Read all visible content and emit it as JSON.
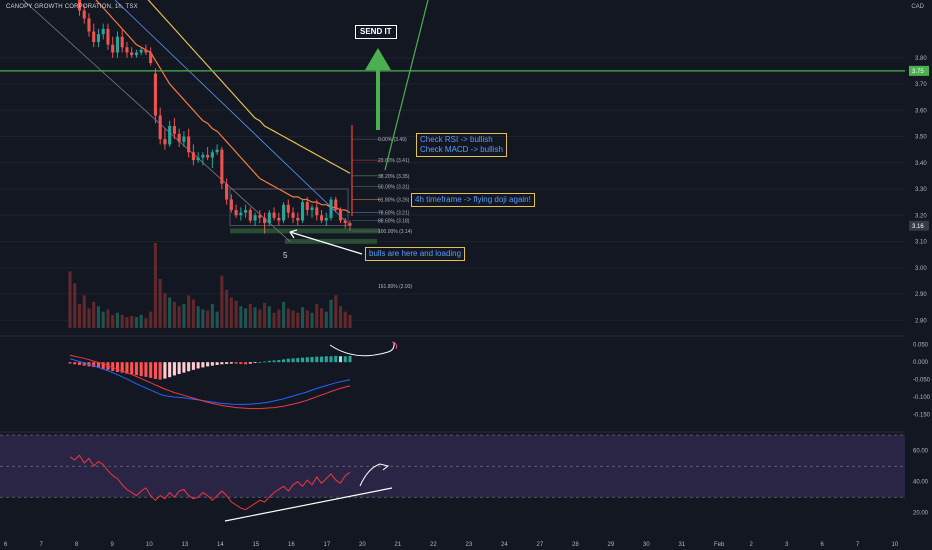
{
  "header": {
    "symbol_line": "CANOPY GROWTH CORPORATION, 1h, TSX",
    "currency": "CAD"
  },
  "annotations": {
    "send_it": "SEND IT",
    "rsi_macd_1": "Check RSI -> bullish",
    "rsi_macd_2": "Check MACD -> bullish",
    "flying_doji": "4h timeframe -> flying doji again!",
    "bulls": "bulls are here and loading",
    "wave_label": "5"
  },
  "fib_labels": [
    "0.00% (3.49)",
    "23.60% (3.41)",
    "38.20% (3.35)",
    "50.00% (3.31)",
    "61.80% (3.26)",
    "78.60% (3.21)",
    "88.60% (3.18)",
    "100.00% (3.14)",
    "161.80% (2.93)"
  ],
  "price_badges": {
    "resistance": "3.75",
    "last": "3.16"
  },
  "colors": {
    "up": "#26a69a",
    "down": "#ef5350",
    "bg": "#131722",
    "accent_green": "#4caf50",
    "annotation_border": "#e3c04f"
  },
  "chart_data": [
    {
      "type": "candlestick",
      "panel": "price",
      "ylim": [
        2.74,
        4.02
      ],
      "y_ticks": [
        "3.80",
        "3.70",
        "3.60",
        "3.50",
        "3.40",
        "3.30",
        "3.20",
        "3.10",
        "3.00",
        "2.90",
        "2.80"
      ],
      "x_ticks": [
        "6",
        "7",
        "8",
        "9",
        "10",
        "13",
        "14",
        "15",
        "16",
        "17",
        "20",
        "21",
        "22",
        "23",
        "24",
        "27",
        "28",
        "29",
        "30",
        "31",
        "Feb",
        "2",
        "3",
        "6",
        "7",
        "10"
      ],
      "candles_ohlc": [
        [
          4.08,
          4.12,
          4.03,
          4.06
        ],
        [
          4.06,
          4.1,
          4.02,
          4.04
        ],
        [
          4.04,
          4.06,
          3.96,
          3.98
        ],
        [
          3.98,
          4.0,
          3.93,
          3.95
        ],
        [
          3.95,
          3.97,
          3.88,
          3.9
        ],
        [
          3.9,
          3.93,
          3.84,
          3.86
        ],
        [
          3.86,
          3.91,
          3.84,
          3.89
        ],
        [
          3.89,
          3.93,
          3.87,
          3.91
        ],
        [
          3.91,
          3.93,
          3.83,
          3.85
        ],
        [
          3.85,
          3.88,
          3.8,
          3.82
        ],
        [
          3.82,
          3.9,
          3.8,
          3.88
        ],
        [
          3.88,
          3.91,
          3.82,
          3.84
        ],
        [
          3.84,
          3.86,
          3.8,
          3.82
        ],
        [
          3.82,
          3.84,
          3.8,
          3.81
        ],
        [
          3.81,
          3.83,
          3.8,
          3.82
        ],
        [
          3.82,
          3.84,
          3.81,
          3.83
        ],
        [
          3.83,
          3.85,
          3.81,
          3.82
        ],
        [
          3.82,
          3.84,
          3.77,
          3.78
        ],
        [
          3.74,
          3.76,
          3.55,
          3.58
        ],
        [
          3.58,
          3.61,
          3.47,
          3.49
        ],
        [
          3.49,
          3.53,
          3.45,
          3.47
        ],
        [
          3.47,
          3.56,
          3.46,
          3.54
        ],
        [
          3.54,
          3.57,
          3.49,
          3.51
        ],
        [
          3.51,
          3.53,
          3.46,
          3.48
        ],
        [
          3.48,
          3.52,
          3.46,
          3.5
        ],
        [
          3.5,
          3.53,
          3.42,
          3.44
        ],
        [
          3.44,
          3.47,
          3.39,
          3.41
        ],
        [
          3.41,
          3.44,
          3.4,
          3.42
        ],
        [
          3.42,
          3.44,
          3.39,
          3.43
        ],
        [
          3.43,
          3.46,
          3.41,
          3.42
        ],
        [
          3.42,
          3.45,
          3.38,
          3.44
        ],
        [
          3.44,
          3.47,
          3.43,
          3.45
        ],
        [
          3.45,
          3.46,
          3.3,
          3.32
        ],
        [
          3.32,
          3.34,
          3.24,
          3.26
        ],
        [
          3.26,
          3.28,
          3.21,
          3.22
        ],
        [
          3.22,
          3.24,
          3.19,
          3.2
        ],
        [
          3.2,
          3.23,
          3.18,
          3.21
        ],
        [
          3.21,
          3.24,
          3.19,
          3.22
        ],
        [
          3.22,
          3.23,
          3.17,
          3.18
        ],
        [
          3.18,
          3.21,
          3.16,
          3.2
        ],
        [
          3.2,
          3.22,
          3.17,
          3.19
        ],
        [
          3.19,
          3.21,
          3.13,
          3.17
        ],
        [
          3.17,
          3.22,
          3.16,
          3.21
        ],
        [
          3.21,
          3.23,
          3.18,
          3.19
        ],
        [
          3.19,
          3.21,
          3.16,
          3.18
        ],
        [
          3.18,
          3.25,
          3.17,
          3.24
        ],
        [
          3.24,
          3.26,
          3.19,
          3.21
        ],
        [
          3.21,
          3.23,
          3.17,
          3.19
        ],
        [
          3.19,
          3.21,
          3.16,
          3.18
        ],
        [
          3.18,
          3.26,
          3.17,
          3.25
        ],
        [
          3.25,
          3.27,
          3.2,
          3.22
        ],
        [
          3.22,
          3.24,
          3.19,
          3.23
        ],
        [
          3.23,
          3.26,
          3.18,
          3.2
        ],
        [
          3.2,
          3.22,
          3.17,
          3.18
        ],
        [
          3.18,
          3.21,
          3.16,
          3.19
        ],
        [
          3.19,
          3.27,
          3.18,
          3.26
        ],
        [
          3.26,
          3.27,
          3.21,
          3.22
        ],
        [
          3.22,
          3.23,
          3.17,
          3.18
        ],
        [
          3.18,
          3.19,
          3.15,
          3.17
        ],
        [
          3.17,
          3.18,
          3.14,
          3.16
        ]
      ],
      "volume": [
        52,
        41,
        22,
        30,
        18,
        24,
        20,
        15,
        17,
        12,
        14,
        12,
        10,
        11,
        10,
        12,
        9,
        15,
        78,
        45,
        32,
        28,
        24,
        20,
        22,
        30,
        26,
        20,
        17,
        16,
        22,
        15,
        48,
        35,
        28,
        25,
        20,
        18,
        22,
        19,
        17,
        23,
        20,
        14,
        17,
        24,
        18,
        16,
        14,
        19,
        16,
        14,
        22,
        18,
        15,
        26,
        30,
        20,
        15,
        12
      ],
      "ema_20": [
        4.14,
        4.12,
        4.1,
        4.08,
        4.06,
        4.03,
        4.01,
        3.99,
        3.97,
        3.95,
        3.93,
        3.91,
        3.89,
        3.87,
        3.85,
        3.84,
        3.83,
        3.82,
        3.79,
        3.76,
        3.73,
        3.7,
        3.68,
        3.66,
        3.64,
        3.62,
        3.6,
        3.58,
        3.56,
        3.55,
        3.53,
        3.52,
        3.5,
        3.48,
        3.46,
        3.44,
        3.42,
        3.4,
        3.38,
        3.36,
        3.34,
        3.33,
        3.32,
        3.31,
        3.3,
        3.29,
        3.28,
        3.27,
        3.27,
        3.26,
        3.26,
        3.25,
        3.25,
        3.24,
        3.24,
        3.23,
        3.23,
        3.22,
        3.22,
        3.21
      ],
      "ema_50": [
        4.24,
        4.23,
        4.22,
        4.21,
        4.2,
        4.19,
        4.17,
        4.16,
        4.14,
        4.13,
        4.12,
        4.1,
        4.09,
        4.07,
        4.06,
        4.04,
        4.03,
        4.01,
        3.99,
        3.97,
        3.95,
        3.93,
        3.91,
        3.89,
        3.87,
        3.85,
        3.83,
        3.81,
        3.79,
        3.77,
        3.75,
        3.73,
        3.71,
        3.69,
        3.67,
        3.65,
        3.63,
        3.61,
        3.59,
        3.57,
        3.56,
        3.54,
        3.53,
        3.52,
        3.51,
        3.5,
        3.49,
        3.48,
        3.47,
        3.46,
        3.45,
        3.44,
        3.43,
        3.42,
        3.41,
        3.4,
        3.39,
        3.38,
        3.37,
        3.36
      ],
      "resistance_level": 3.75,
      "last_price": 3.16
    },
    {
      "type": "bar",
      "panel": "macd",
      "ylim": [
        -0.2,
        0.075
      ],
      "y_ticks": [
        "0.050",
        "0.000",
        "-0.050",
        "-0.100",
        "-0.150"
      ],
      "histogram": [
        -0.004,
        -0.006,
        -0.008,
        -0.01,
        -0.012,
        -0.014,
        -0.016,
        -0.019,
        -0.022,
        -0.025,
        -0.028,
        -0.03,
        -0.033,
        -0.035,
        -0.037,
        -0.04,
        -0.042,
        -0.045,
        -0.048,
        -0.05,
        -0.047,
        -0.043,
        -0.038,
        -0.034,
        -0.03,
        -0.026,
        -0.022,
        -0.018,
        -0.015,
        -0.012,
        -0.01,
        -0.008,
        -0.006,
        -0.005,
        -0.004,
        -0.004,
        -0.005,
        -0.006,
        -0.004,
        -0.002,
        0.0,
        0.002,
        0.004,
        0.005,
        0.006,
        0.008,
        0.01,
        0.011,
        0.012,
        0.013,
        0.014,
        0.015,
        0.016,
        0.016,
        0.017,
        0.017,
        0.018,
        0.017,
        0.017,
        0.018
      ],
      "macd_line": [
        0.01,
        0.006,
        0.002,
        -0.002,
        -0.006,
        -0.01,
        -0.015,
        -0.02,
        -0.025,
        -0.03,
        -0.036,
        -0.042,
        -0.048,
        -0.055,
        -0.062,
        -0.068,
        -0.074,
        -0.08,
        -0.086,
        -0.092,
        -0.096,
        -0.098,
        -0.1,
        -0.101,
        -0.102,
        -0.104,
        -0.106,
        -0.108,
        -0.11,
        -0.112,
        -0.114,
        -0.116,
        -0.118,
        -0.119,
        -0.12,
        -0.121,
        -0.121,
        -0.121,
        -0.12,
        -0.119,
        -0.118,
        -0.116,
        -0.114,
        -0.111,
        -0.108,
        -0.105,
        -0.101,
        -0.097,
        -0.093,
        -0.089,
        -0.085,
        -0.08,
        -0.075,
        -0.071,
        -0.067,
        -0.063,
        -0.059,
        -0.056,
        -0.053,
        -0.05
      ],
      "signal_line": [
        0.02,
        0.017,
        0.014,
        0.011,
        0.007,
        0.003,
        -0.001,
        -0.005,
        -0.01,
        -0.015,
        -0.02,
        -0.025,
        -0.03,
        -0.035,
        -0.041,
        -0.047,
        -0.053,
        -0.059,
        -0.065,
        -0.071,
        -0.077,
        -0.082,
        -0.087,
        -0.091,
        -0.095,
        -0.099,
        -0.103,
        -0.107,
        -0.111,
        -0.115,
        -0.118,
        -0.121,
        -0.124,
        -0.126,
        -0.128,
        -0.13,
        -0.131,
        -0.132,
        -0.133,
        -0.133,
        -0.133,
        -0.132,
        -0.131,
        -0.13,
        -0.128,
        -0.126,
        -0.123,
        -0.12,
        -0.117,
        -0.113,
        -0.109,
        -0.104,
        -0.099,
        -0.094,
        -0.089,
        -0.084,
        -0.079,
        -0.075,
        -0.071,
        -0.068
      ]
    },
    {
      "type": "line",
      "panel": "rsi",
      "ylim": [
        5,
        72
      ],
      "y_ticks": [
        "60.00",
        "40.00",
        "20.00"
      ],
      "band": [
        30,
        70
      ],
      "rsi": [
        56,
        54,
        57,
        52,
        55,
        50,
        53,
        51,
        47,
        44,
        42,
        38,
        35,
        33,
        31,
        34,
        36,
        31,
        28,
        31,
        29,
        33,
        30,
        34,
        35,
        31,
        29,
        30,
        33,
        31,
        28,
        31,
        34,
        31,
        27,
        25,
        23,
        22,
        24,
        26,
        28,
        27,
        30,
        33,
        35,
        37,
        34,
        38,
        40,
        37,
        41,
        38,
        43,
        39,
        42,
        45,
        41,
        39,
        44,
        46
      ]
    }
  ]
}
